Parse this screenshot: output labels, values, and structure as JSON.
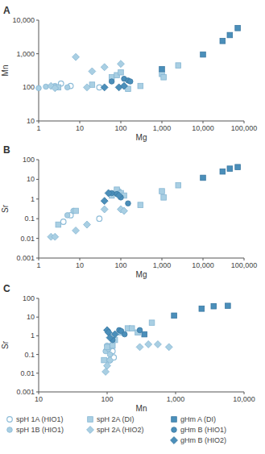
{
  "chart_data": [
    {
      "type": "scatter",
      "title": "A",
      "x_label": "Mg",
      "y_label": "Mn",
      "log": true,
      "xlim": [
        1,
        100000
      ],
      "xticks": [
        1,
        10,
        100,
        {
          "value": 1000,
          "label": "1,000"
        },
        {
          "value": 10000,
          "label": "10,000"
        },
        {
          "value": 100000,
          "label": "100,000"
        }
      ],
      "ylim": [
        10,
        10000
      ],
      "yticks": [
        10,
        100,
        {
          "value": 1000,
          "label": "1,000"
        },
        {
          "value": 10000,
          "label": "10,000"
        }
      ],
      "series": [
        {
          "color": "#8dbcd8",
          "marker": "open-circle",
          "x": [
            3.5,
            6,
            30
          ],
          "values": [
            130,
            110,
            100
          ]
        },
        {
          "color": "#a9cfe3",
          "marker": "circle",
          "x": [
            1,
            1.5,
            2.5,
            5
          ],
          "values": [
            95,
            105,
            110,
            100
          ]
        },
        {
          "color": "#a9cfe3",
          "marker": "square",
          "x": [
            3,
            20,
            60,
            80,
            100,
            150,
            300,
            1000,
            1100,
            2500
          ],
          "values": [
            100,
            120,
            200,
            230,
            280,
            90,
            110,
            250,
            200,
            450
          ]
        },
        {
          "color": "#a9cfe3",
          "marker": "diamond",
          "x": [
            2,
            2.5,
            8,
            15,
            20,
            40,
            100
          ],
          "values": [
            110,
            95,
            800,
            100,
            300,
            400,
            500
          ]
        },
        {
          "color": "#4b8fba",
          "marker": "square",
          "x": [
            1000,
            10000,
            30000,
            45000,
            70000
          ],
          "values": [
            350,
            950,
            2400,
            3600,
            5800
          ]
        },
        {
          "color": "#4b8fba",
          "marker": "circle",
          "x": [
            60,
            120,
            150,
            170
          ],
          "values": [
            150,
            180,
            160,
            150
          ]
        },
        {
          "color": "#4b8fba",
          "marker": "diamond",
          "x": [
            40,
            90,
            120
          ],
          "values": [
            100,
            100,
            110
          ]
        }
      ]
    },
    {
      "type": "scatter",
      "title": "B",
      "x_label": "Mg",
      "y_label": "Sr",
      "log": true,
      "xlim": [
        1,
        100000
      ],
      "xticks": [
        1,
        10,
        100,
        {
          "value": 1000,
          "label": "1,000"
        },
        {
          "value": 10000,
          "label": "10,000"
        },
        {
          "value": 100000,
          "label": "100,000"
        }
      ],
      "ylim": [
        0.001,
        100
      ],
      "yticks": [
        0.001,
        0.01,
        0.1,
        1,
        10,
        100
      ],
      "series": [
        {
          "color": "#8dbcd8",
          "marker": "open-circle",
          "x": [
            4,
            6,
            30
          ],
          "values": [
            0.07,
            0.15,
            0.1
          ]
        },
        {
          "color": "#a9cfe3",
          "marker": "circle",
          "x": [
            5,
            7,
            60,
            90
          ],
          "values": [
            0.15,
            0.25,
            1.8,
            2.5
          ]
        },
        {
          "color": "#a9cfe3",
          "marker": "square",
          "x": [
            3,
            8,
            60,
            80,
            100,
            120,
            300,
            1000,
            1100,
            2500
          ],
          "values": [
            0.05,
            0.25,
            1.5,
            3,
            2,
            1.5,
            0.5,
            2.5,
            1.2,
            5
          ]
        },
        {
          "color": "#a9cfe3",
          "marker": "diamond",
          "x": [
            2,
            2.5,
            8,
            15,
            40,
            100,
            120
          ],
          "values": [
            0.012,
            0.012,
            0.025,
            0.05,
            0.3,
            0.3,
            0.25
          ]
        },
        {
          "color": "#4b8fba",
          "marker": "square",
          "x": [
            10000,
            30000,
            45000,
            70000
          ],
          "values": [
            12,
            25,
            35,
            42
          ]
        },
        {
          "color": "#4b8fba",
          "marker": "circle",
          "x": [
            60,
            80,
            100,
            150
          ],
          "values": [
            2,
            1.8,
            1.2,
            0.6
          ]
        },
        {
          "color": "#4b8fba",
          "marker": "diamond",
          "x": [
            40,
            50,
            90
          ],
          "values": [
            0.8,
            2,
            1.5
          ]
        }
      ]
    },
    {
      "type": "scatter",
      "title": "C",
      "x_label": "Mn",
      "y_label": "Sr",
      "log": true,
      "legend": "bottom",
      "xlim": [
        10,
        10000
      ],
      "xticks": [
        10,
        100,
        {
          "value": 1000,
          "label": "1,000"
        },
        {
          "value": 10000,
          "label": "10,000"
        }
      ],
      "ylim": [
        0.001,
        100
      ],
      "yticks": [
        0.001,
        0.01,
        0.1,
        1,
        10,
        100
      ],
      "series": [
        {
          "name": "spH 1A (HIO1)",
          "color": "#8dbcd8",
          "marker": "open-circle",
          "x": [
            110,
            120,
            125
          ],
          "values": [
            0.05,
            0.15,
            0.07
          ]
        },
        {
          "name": "spH 1B (HIO1)",
          "color": "#a9cfe3",
          "marker": "circle",
          "x": [
            95,
            100,
            105,
            110
          ],
          "values": [
            0.15,
            0.3,
            0.2,
            0.1
          ]
        },
        {
          "name": "spH 2A (DI)",
          "color": "#a9cfe3",
          "marker": "square",
          "x": [
            90,
            100,
            120,
            130,
            160,
            200,
            230,
            280,
            450
          ],
          "values": [
            0.05,
            0.25,
            0.3,
            0.6,
            1.5,
            2.5,
            2.5,
            1.5,
            5
          ]
        },
        {
          "name": "spH 2A (HIO2)",
          "color": "#a9cfe3",
          "marker": "diamond",
          "x": [
            95,
            100,
            110,
            300,
            400,
            550,
            800
          ],
          "values": [
            0.012,
            0.025,
            0.05,
            0.25,
            0.35,
            0.35,
            0.25
          ]
        },
        {
          "name": "gHm A (DI)",
          "color": "#4b8fba",
          "marker": "square",
          "x": [
            350,
            950,
            2400,
            3600,
            5800
          ],
          "values": [
            1.2,
            12,
            28,
            38,
            40
          ]
        },
        {
          "name": "gHm B (HIO1)",
          "color": "#4b8fba",
          "marker": "circle",
          "x": [
            120,
            150,
            160,
            180,
            300
          ],
          "values": [
            0.6,
            2,
            1.8,
            1.2,
            2
          ]
        },
        {
          "name": "gHm B (HIO2)",
          "color": "#4b8fba",
          "marker": "diamond",
          "x": [
            100,
            105,
            110,
            130
          ],
          "values": [
            2,
            1.5,
            0.8,
            1.2
          ]
        }
      ]
    }
  ]
}
